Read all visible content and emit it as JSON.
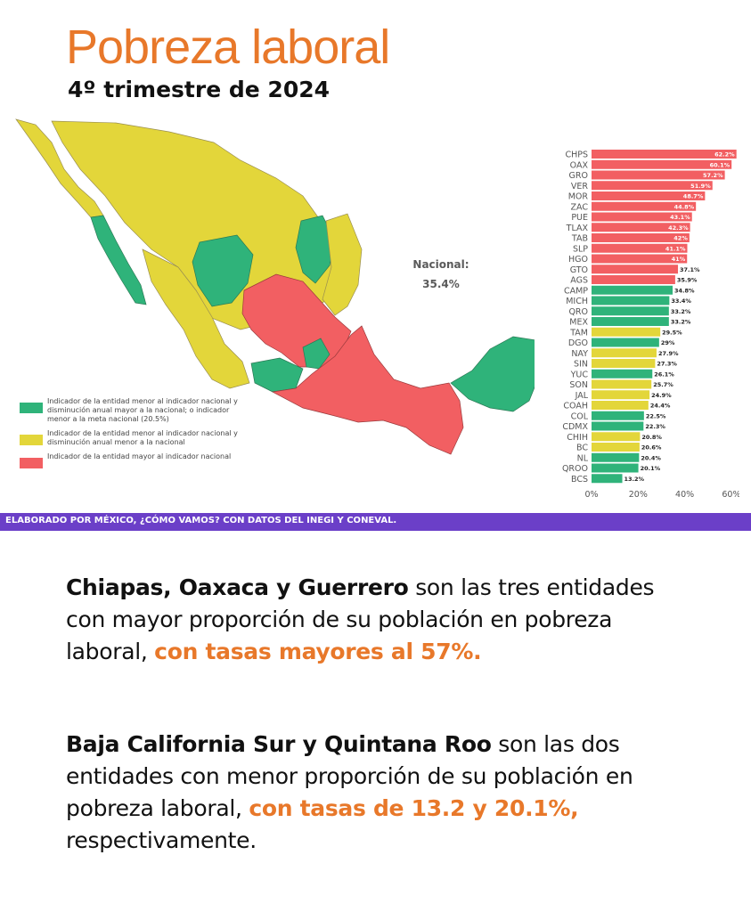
{
  "header": {
    "title": "Pobreza laboral",
    "subtitle": "4º trimestre de 2024"
  },
  "map": {
    "nacional_label": "Nacional:",
    "nacional_value": "35.4%",
    "legend": [
      {
        "color": "#2fb37a",
        "text": "Indicador de la entidad menor al indicador nacional y disminución anual mayor a la nacional; o indicador menor a la meta nacional (20.5%)"
      },
      {
        "color": "#e3d63a",
        "text": "Indicador de la entidad menor al indicador nacional y disminución anual menor a la nacional"
      },
      {
        "color": "#f25f62",
        "text": "Indicador de la entidad mayor al indicador nacional"
      }
    ]
  },
  "colors": {
    "red": "#f25f62",
    "green": "#2fb37a",
    "yellow": "#e3d63a",
    "title": "#e8782a",
    "banner": "#6b3fc8"
  },
  "chart_data": {
    "type": "bar",
    "orientation": "horizontal",
    "categories": [
      "CHPS",
      "OAX",
      "GRO",
      "VER",
      "MOR",
      "ZAC",
      "PUE",
      "TLAX",
      "TAB",
      "SLP",
      "HGO",
      "GTO",
      "AGS",
      "CAMP",
      "MICH",
      "QRO",
      "MEX",
      "TAM",
      "DGO",
      "NAY",
      "SIN",
      "YUC",
      "SON",
      "JAL",
      "COAH",
      "COL",
      "CDMX",
      "CHIH",
      "BC",
      "NL",
      "QROO",
      "BCS"
    ],
    "values": [
      62.2,
      60.1,
      57.2,
      51.9,
      48.7,
      44.8,
      43.1,
      42.3,
      42,
      41.1,
      41,
      37.1,
      35.9,
      34.8,
      33.4,
      33.2,
      33.2,
      29.5,
      29,
      27.9,
      27.3,
      26.1,
      25.7,
      24.9,
      24.4,
      22.5,
      22.3,
      20.8,
      20.6,
      20.4,
      20.1,
      13.2
    ],
    "value_labels": [
      "62.2%",
      "60.1%",
      "57.2%",
      "51.9%",
      "48.7%",
      "44.8%",
      "43.1%",
      "42.3%",
      "42%",
      "41.1%",
      "41%",
      "37.1%",
      "35.9%",
      "34.8%",
      "33.4%",
      "33.2%",
      "33.2%",
      "29.5%",
      "29%",
      "27.9%",
      "27.3%",
      "26.1%",
      "25.7%",
      "24.9%",
      "24.4%",
      "22.5%",
      "22.3%",
      "20.8%",
      "20.6%",
      "20.4%",
      "20.1%",
      "13.2%"
    ],
    "bar_colors": [
      "red",
      "red",
      "red",
      "red",
      "red",
      "red",
      "red",
      "red",
      "red",
      "red",
      "red",
      "red",
      "red",
      "green",
      "green",
      "green",
      "green",
      "yellow",
      "green",
      "yellow",
      "yellow",
      "green",
      "yellow",
      "yellow",
      "yellow",
      "green",
      "green",
      "yellow",
      "yellow",
      "green",
      "green",
      "green"
    ],
    "xlim": [
      0,
      65
    ],
    "xticks": [
      "0%",
      "20%",
      "40%",
      "60%"
    ],
    "xtick_values": [
      0,
      20,
      40,
      60
    ],
    "grid": false
  },
  "footer": {
    "credit": "ELABORADO POR MÉXICO, ¿CÓMO VAMOS? CON DATOS DEL INEGI Y CONEVAL."
  },
  "text": {
    "p1_bold": "Chiapas, Oaxaca y Guerrero",
    "p1_normal": " son las tres entidades con mayor proporción de su población en pobreza laboral, ",
    "p1_highlight": "con tasas mayores al 57%.",
    "p2_bold": "Baja California Sur y Quintana Roo",
    "p2_normal": " son las dos entidades con menor proporción de su población en pobreza laboral, ",
    "p2_highlight": "con tasas de 13.2 y 20.1%,",
    "p2_end": " respectivamente."
  }
}
